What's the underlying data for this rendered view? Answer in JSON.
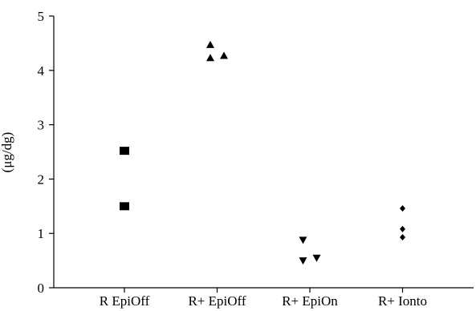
{
  "chart_data": {
    "type": "scatter",
    "ylabel": "(μg/dg)",
    "ylim": [
      0,
      5
    ],
    "yticks": [
      0,
      1,
      2,
      3,
      4,
      5
    ],
    "categories": [
      "R EpiOff",
      "R+ EpiOff",
      "R+ EpiOn",
      "R+ Ionto"
    ],
    "series": [
      {
        "marker": "square",
        "color": "#000000",
        "points": [
          {
            "category": "R EpiOff",
            "offset": 0,
            "y": 2.52
          },
          {
            "category": "R EpiOff",
            "offset": 0,
            "y": 1.5
          }
        ]
      },
      {
        "marker": "triangle-up",
        "color": "#000000",
        "points": [
          {
            "category": "R+ EpiOff",
            "offset": -0.1,
            "y": 4.47
          },
          {
            "category": "R+ EpiOff",
            "offset": -0.1,
            "y": 4.23
          },
          {
            "category": "R+ EpiOff",
            "offset": 0.1,
            "y": 4.27
          }
        ]
      },
      {
        "marker": "triangle-down",
        "color": "#000000",
        "points": [
          {
            "category": "R+ EpiOn",
            "offset": -0.1,
            "y": 0.88
          },
          {
            "category": "R+ EpiOn",
            "offset": -0.1,
            "y": 0.5
          },
          {
            "category": "R+ EpiOn",
            "offset": 0.1,
            "y": 0.55
          }
        ]
      },
      {
        "marker": "diamond",
        "color": "#000000",
        "points": [
          {
            "category": "R+ Ionto",
            "offset": 0,
            "y": 1.46
          },
          {
            "category": "R+ Ionto",
            "offset": 0,
            "y": 1.08
          },
          {
            "category": "R+ Ionto",
            "offset": 0,
            "y": 0.93
          }
        ]
      }
    ],
    "grid": false,
    "legend": "none"
  }
}
